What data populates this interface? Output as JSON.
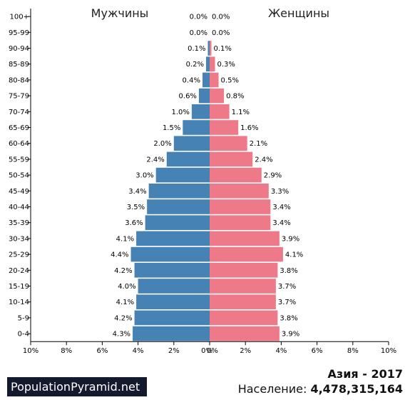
{
  "chart_data": {
    "type": "bar",
    "orientation": "horizontal-pyramid",
    "headers": {
      "left": "Мужчины",
      "right": "Женщины"
    },
    "colors": {
      "male": "#4682b4",
      "female": "#ee7989"
    },
    "xlim": [
      -10,
      10
    ],
    "x_ticks": [
      "10%",
      "8%",
      "6%",
      "4%",
      "2%",
      "0%",
      "0%",
      "2%",
      "4%",
      "6%",
      "8%",
      "10%"
    ],
    "categories": [
      "100+",
      "95-99",
      "90-94",
      "85-89",
      "80-84",
      "75-79",
      "70-74",
      "65-69",
      "60-64",
      "55-59",
      "50-54",
      "45-49",
      "40-44",
      "35-39",
      "30-34",
      "25-29",
      "20-24",
      "15-19",
      "10-14",
      "5-9",
      "0-4"
    ],
    "series": [
      {
        "values": [
          0.0,
          0.0,
          0.1,
          0.2,
          0.4,
          0.6,
          1.0,
          1.5,
          2.0,
          2.4,
          3.0,
          3.4,
          3.5,
          3.6,
          4.1,
          4.4,
          4.2,
          4.0,
          4.1,
          4.2,
          4.3
        ],
        "labels": [
          "0.0%",
          "0.0%",
          "0.1%",
          "0.2%",
          "0.4%",
          "0.6%",
          "1.0%",
          "1.5%",
          "2.0%",
          "2.4%",
          "3.0%",
          "3.4%",
          "3.5%",
          "3.6%",
          "4.1%",
          "4.4%",
          "4.2%",
          "4.0%",
          "4.1%",
          "4.2%",
          "4.3%"
        ]
      },
      {
        "values": [
          0.0,
          0.0,
          0.1,
          0.3,
          0.5,
          0.8,
          1.1,
          1.6,
          2.1,
          2.4,
          2.9,
          3.3,
          3.4,
          3.4,
          3.9,
          4.1,
          3.8,
          3.7,
          3.7,
          3.8,
          3.9
        ],
        "labels": [
          "0.0%",
          "0.0%",
          "0.1%",
          "0.3%",
          "0.5%",
          "0.8%",
          "1.1%",
          "1.6%",
          "2.1%",
          "2.4%",
          "2.9%",
          "3.3%",
          "3.4%",
          "3.4%",
          "3.9%",
          "4.1%",
          "3.8%",
          "3.7%",
          "3.7%",
          "3.8%",
          "3.9%"
        ]
      }
    ]
  },
  "footer": {
    "brand": "PopulationPyramid.net",
    "title": "Азия - 2017",
    "population_label": "Население:",
    "population_value": "4,478,315,164"
  }
}
